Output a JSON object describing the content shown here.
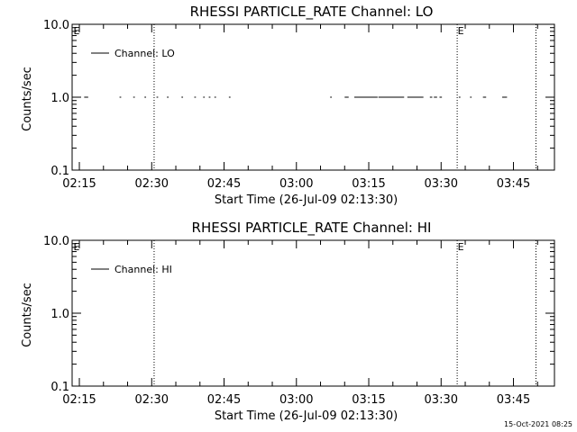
{
  "chart_data": [
    {
      "type": "line",
      "title": "RHESSI PARTICLE_RATE Channel: LO",
      "xlabel": "Start Time (26-Jul-09 02:13:30)",
      "ylabel": "Counts/sec",
      "ylim": [
        0.1,
        10.0
      ],
      "yscale": "log",
      "yticks": [
        "0.1",
        "1.0",
        "10.0"
      ],
      "xlim": [
        "02:13:30",
        "03:53:30"
      ],
      "xticks": [
        "02:15",
        "02:30",
        "02:45",
        "03:00",
        "03:15",
        "03:30",
        "03:45"
      ],
      "legend_location": "top-left",
      "series": [
        {
          "name": "Channel: LO",
          "color": "#000000",
          "segments": [
            [
              "02:16:00",
              "02:16:50"
            ],
            [
              "02:23:20",
              "02:23:40"
            ],
            [
              "02:26:10",
              "02:26:30"
            ],
            [
              "02:28:30",
              "02:28:50"
            ],
            [
              "02:31:00",
              "02:31:20"
            ],
            [
              "02:33:10",
              "02:33:30"
            ],
            [
              "02:36:10",
              "02:36:30"
            ],
            [
              "02:38:50",
              "02:39:10"
            ],
            [
              "02:40:40",
              "02:41:00"
            ],
            [
              "02:41:50",
              "02:42:10"
            ],
            [
              "02:43:00",
              "02:43:20"
            ],
            [
              "02:46:00",
              "02:46:20"
            ],
            [
              "03:07:00",
              "03:07:20"
            ],
            [
              "03:10:00",
              "03:10:50"
            ],
            [
              "03:12:00",
              "03:16:50"
            ],
            [
              "03:17:00",
              "03:22:20"
            ],
            [
              "03:23:00",
              "03:26:20"
            ],
            [
              "03:27:40",
              "03:28:10"
            ],
            [
              "03:28:30",
              "03:29:10"
            ],
            [
              "03:29:40",
              "03:30:10"
            ],
            [
              "03:33:40",
              "03:34:00"
            ],
            [
              "03:36:00",
              "03:36:20"
            ],
            [
              "03:38:40",
              "03:39:20"
            ],
            [
              "03:42:40",
              "03:43:40"
            ]
          ],
          "value": 1.0
        }
      ],
      "vlines": [
        "02:30:30",
        "03:33:20",
        "03:49:40"
      ],
      "vline_markers": [
        "E",
        "E"
      ]
    },
    {
      "type": "line",
      "title": "RHESSI PARTICLE_RATE Channel: HI",
      "xlabel": "Start Time (26-Jul-09 02:13:30)",
      "ylabel": "Counts/sec",
      "ylim": [
        0.1,
        10.0
      ],
      "yscale": "log",
      "yticks": [
        "0.1",
        "1.0",
        "10.0"
      ],
      "xlim": [
        "02:13:30",
        "03:53:30"
      ],
      "xticks": [
        "02:15",
        "02:30",
        "02:45",
        "03:00",
        "03:15",
        "03:30",
        "03:45"
      ],
      "legend_location": "top-left",
      "series": [
        {
          "name": "Channel: HI",
          "color": "#000000",
          "segments": [],
          "value": 1.0
        }
      ],
      "vlines": [
        "02:30:30",
        "03:33:20",
        "03:49:40"
      ],
      "vline_markers": [
        "E",
        "E"
      ]
    }
  ],
  "footer": {
    "timestamp": "15-Oct-2021 08:25"
  }
}
